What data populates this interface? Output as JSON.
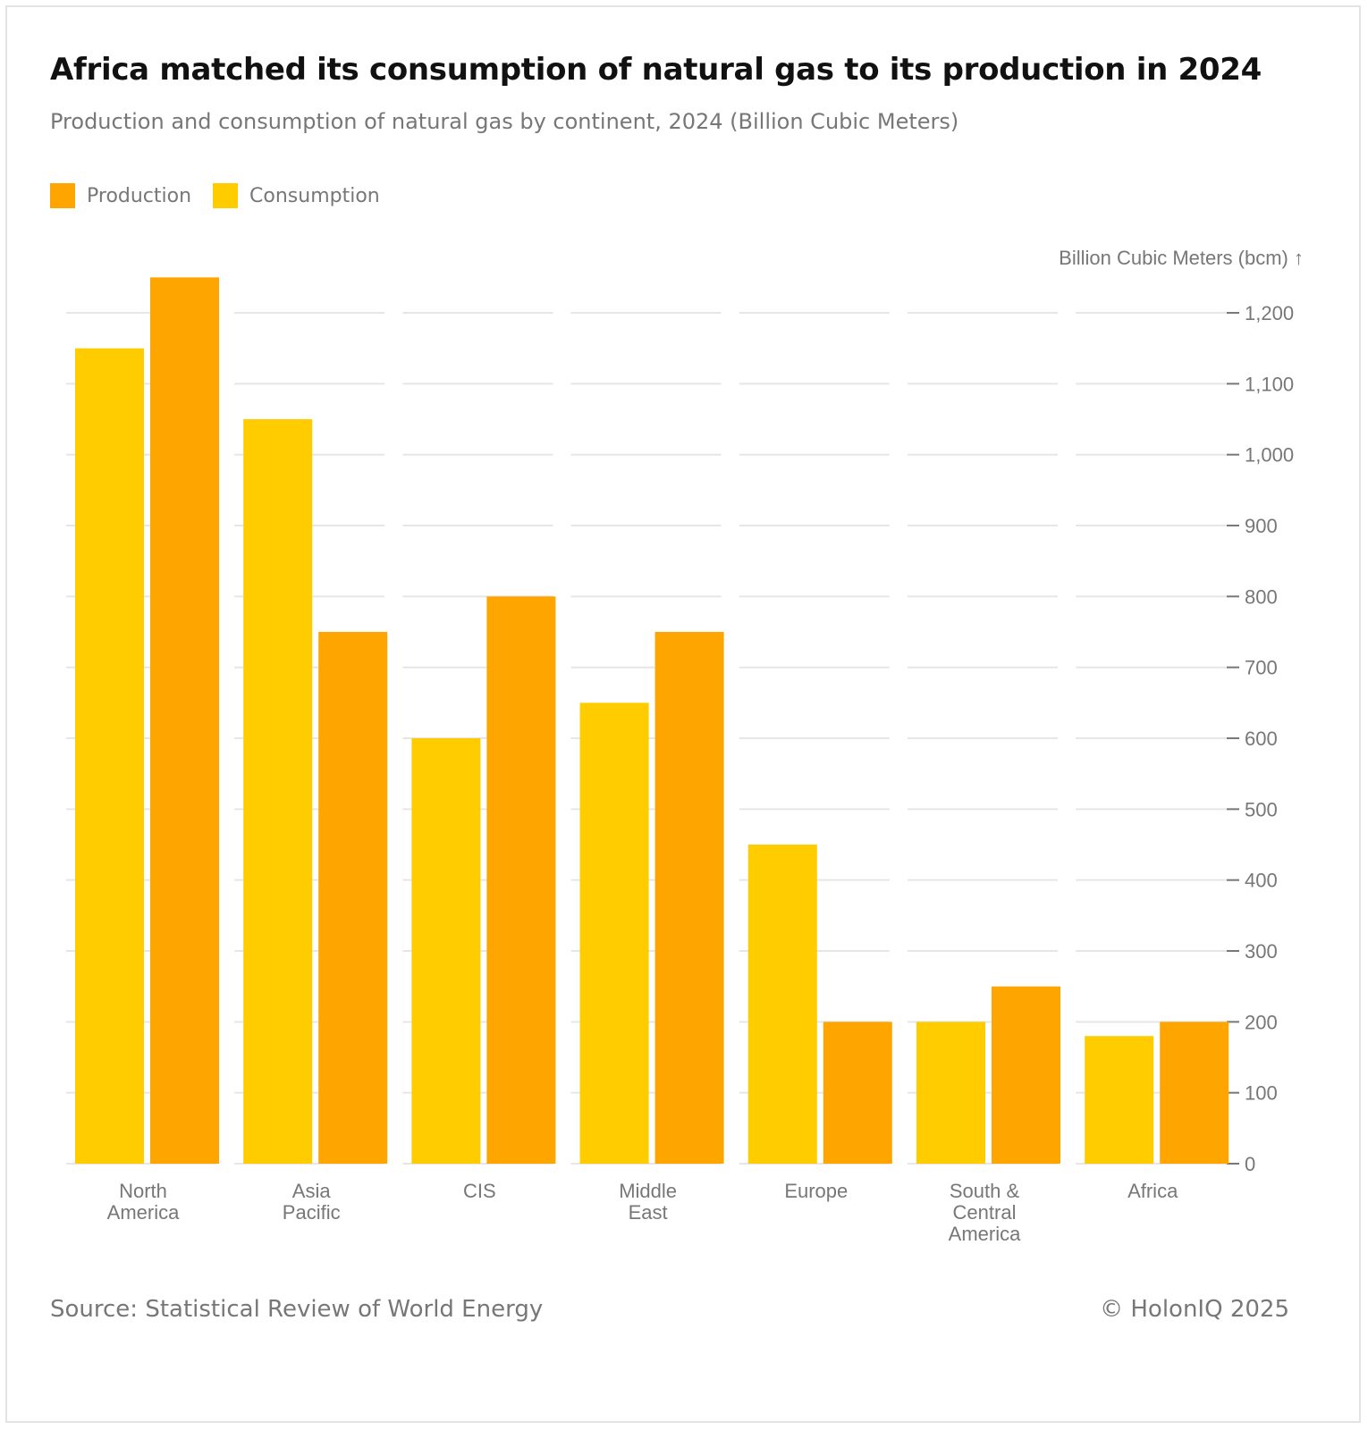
{
  "chart_data": {
    "type": "bar",
    "title": "Africa matched its consumption of natural gas to its production in 2024",
    "subtitle": "Production and consumption of natural gas by continent, 2024 (Billion Cubic Meters)",
    "ylabel": "Billion Cubic Meters (bcm) ↑",
    "xlabel": "",
    "ylim": [
      0,
      1250
    ],
    "yticks": [
      0,
      100,
      200,
      300,
      400,
      500,
      600,
      700,
      800,
      900,
      1000,
      1100,
      1200
    ],
    "ytick_labels": [
      "0",
      "100",
      "200",
      "300",
      "400",
      "500",
      "600",
      "700",
      "800",
      "900",
      "1,000",
      "1,100",
      "1,200"
    ],
    "grid": true,
    "legend_position": "top-left",
    "categories": [
      [
        "North",
        "America"
      ],
      [
        "Asia",
        "Pacific"
      ],
      [
        "CIS"
      ],
      [
        "Middle",
        "East"
      ],
      [
        "Europe"
      ],
      [
        "South &",
        "Central",
        "America"
      ],
      [
        "Africa"
      ]
    ],
    "series": [
      {
        "name": "Consumption",
        "color": "#FFCC00",
        "values": [
          1150,
          1050,
          600,
          650,
          450,
          200,
          180
        ]
      },
      {
        "name": "Production",
        "color": "#FFA500",
        "values": [
          1250,
          750,
          800,
          750,
          200,
          250,
          200
        ]
      }
    ],
    "legend": [
      {
        "name": "Production",
        "color": "#FFA500"
      },
      {
        "name": "Consumption",
        "color": "#FFCC00"
      }
    ]
  },
  "footer": {
    "source": "Source: Statistical Review of World Energy",
    "copyright": "© HolonIQ 2025"
  }
}
